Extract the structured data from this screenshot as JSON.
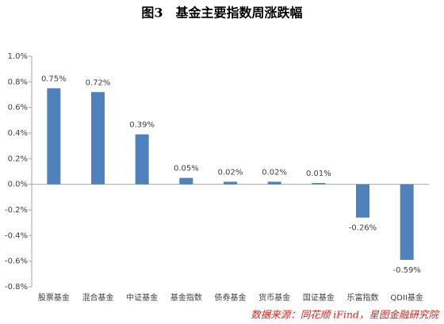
{
  "chart_data": {
    "type": "bar",
    "title": "图3　基金主要指数周涨跌幅",
    "source": "数据来源：同花顺 iFind，星图金融研究院",
    "categories": [
      "股票基金",
      "混合基金",
      "中证基金",
      "基金指数",
      "债券基金",
      "货币基金",
      "国证基金",
      "乐富指数",
      "QDII基金"
    ],
    "values": [
      0.75,
      0.72,
      0.39,
      0.05,
      0.02,
      0.02,
      0.01,
      -0.26,
      -0.59
    ],
    "value_labels": [
      "0.75%",
      "0.72%",
      "0.39%",
      "0.05%",
      "0.02%",
      "0.02%",
      "0.01%",
      "-0.26%",
      "-0.59%"
    ],
    "color": "#4f81bd",
    "ylim": [
      -0.8,
      1.0
    ],
    "yticks": [
      {
        "value": 1.0,
        "label": "1.0%"
      },
      {
        "value": 0.8,
        "label": "0.8%"
      },
      {
        "value": 0.6,
        "label": "0.6%"
      },
      {
        "value": 0.4,
        "label": "0.4%"
      },
      {
        "value": 0.2,
        "label": "0.2%"
      },
      {
        "value": 0.0,
        "label": "0.0%"
      },
      {
        "value": -0.2,
        "label": "-0.2%"
      },
      {
        "value": -0.4,
        "label": "-0.4%"
      },
      {
        "value": -0.6,
        "label": "-0.6%"
      },
      {
        "value": -0.8,
        "label": "-0.8%"
      }
    ],
    "grid": false
  }
}
